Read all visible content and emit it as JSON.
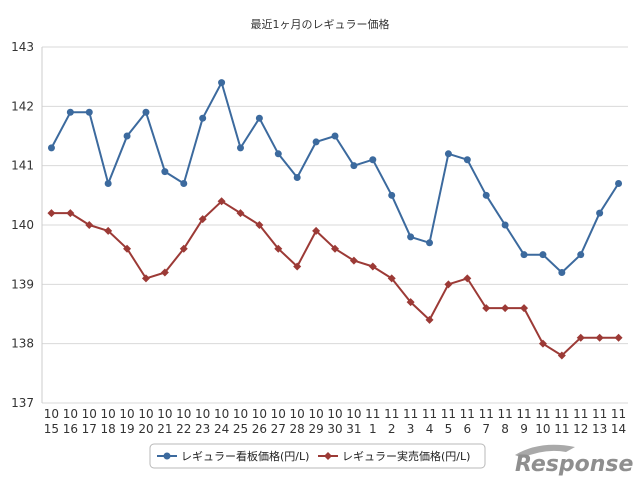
{
  "chart_data": {
    "type": "line",
    "title": "最近1ヶ月のレギュラー価格",
    "xlabel": "",
    "ylabel": "",
    "ylim": [
      137,
      143
    ],
    "yticks": [
      137,
      138,
      139,
      140,
      141,
      142,
      143
    ],
    "grid": true,
    "legend": "bottom",
    "categories": [
      {
        "m": "10",
        "d": "15"
      },
      {
        "m": "10",
        "d": "16"
      },
      {
        "m": "10",
        "d": "17"
      },
      {
        "m": "10",
        "d": "18"
      },
      {
        "m": "10",
        "d": "19"
      },
      {
        "m": "10",
        "d": "20"
      },
      {
        "m": "10",
        "d": "21"
      },
      {
        "m": "10",
        "d": "22"
      },
      {
        "m": "10",
        "d": "23"
      },
      {
        "m": "10",
        "d": "24"
      },
      {
        "m": "10",
        "d": "25"
      },
      {
        "m": "10",
        "d": "26"
      },
      {
        "m": "10",
        "d": "27"
      },
      {
        "m": "10",
        "d": "28"
      },
      {
        "m": "10",
        "d": "29"
      },
      {
        "m": "10",
        "d": "30"
      },
      {
        "m": "10",
        "d": "31"
      },
      {
        "m": "11",
        "d": "1"
      },
      {
        "m": "11",
        "d": "2"
      },
      {
        "m": "11",
        "d": "3"
      },
      {
        "m": "11",
        "d": "4"
      },
      {
        "m": "11",
        "d": "5"
      },
      {
        "m": "11",
        "d": "6"
      },
      {
        "m": "11",
        "d": "7"
      },
      {
        "m": "11",
        "d": "8"
      },
      {
        "m": "11",
        "d": "9"
      },
      {
        "m": "11",
        "d": "10"
      },
      {
        "m": "11",
        "d": "11"
      },
      {
        "m": "11",
        "d": "12"
      },
      {
        "m": "11",
        "d": "13"
      },
      {
        "m": "11",
        "d": "14"
      }
    ],
    "series": [
      {
        "name": "レギュラー看板価格(円/L)",
        "color": "#3c6a9e",
        "marker": "circle",
        "values": [
          141.3,
          141.9,
          141.9,
          140.7,
          141.5,
          141.9,
          140.9,
          140.7,
          141.8,
          142.4,
          141.3,
          141.8,
          141.2,
          140.8,
          141.4,
          141.5,
          141.0,
          141.1,
          140.5,
          139.8,
          139.7,
          141.2,
          141.1,
          140.5,
          140.0,
          139.5,
          139.5,
          139.2,
          139.5,
          140.2,
          140.7
        ]
      },
      {
        "name": "レギュラー実売価格(円/L)",
        "color": "#9c3a36",
        "marker": "diamond",
        "values": [
          140.2,
          140.2,
          140.0,
          139.9,
          139.6,
          139.1,
          139.2,
          139.6,
          140.1,
          140.4,
          140.2,
          140.0,
          139.6,
          139.3,
          139.9,
          139.6,
          139.4,
          139.3,
          139.1,
          138.7,
          138.4,
          139.0,
          139.1,
          138.6,
          138.6,
          138.6,
          138.0,
          137.8,
          138.1,
          138.1,
          138.1
        ]
      }
    ]
  },
  "watermark": {
    "text": "Response"
  },
  "colors": {
    "grid": "#d9d9d9",
    "axis": "#cccccc"
  }
}
